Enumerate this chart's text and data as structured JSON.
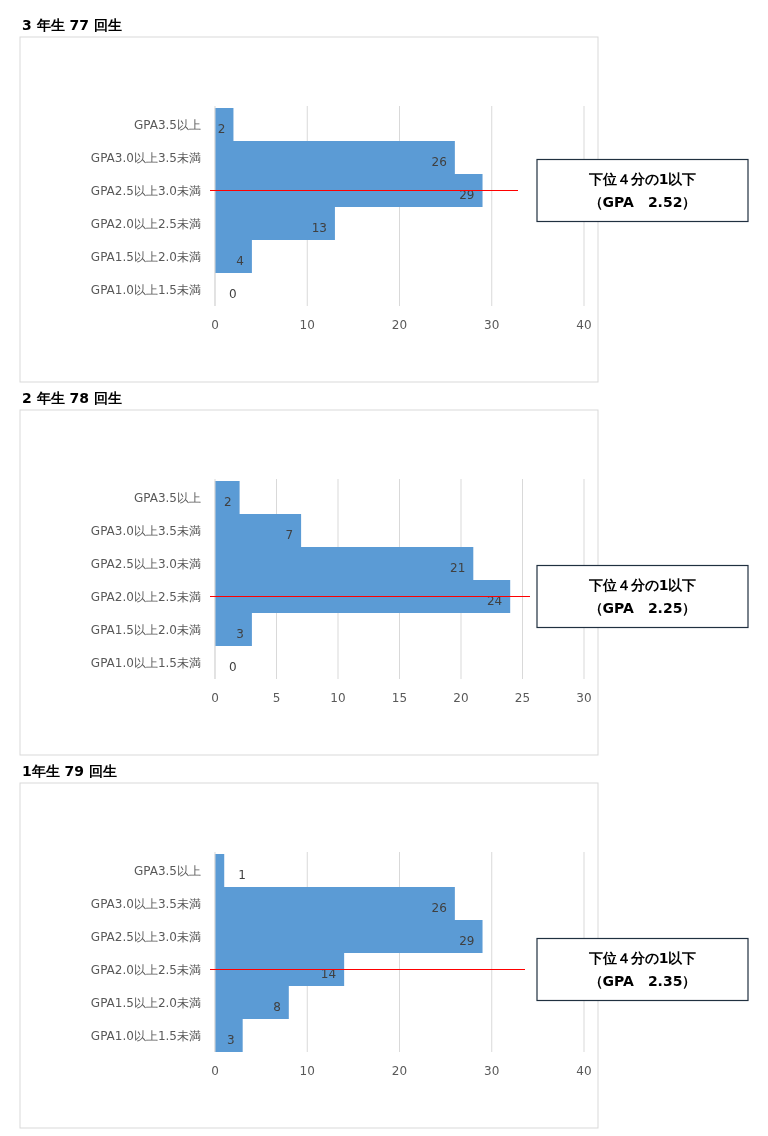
{
  "chart_data": [
    {
      "type": "bar",
      "orientation": "horizontal",
      "title": "3 年生  77 回生",
      "categories": [
        "GPA3.5以上",
        "GPA3.0以上3.5未満",
        "GPA2.5以上3.0未満",
        "GPA2.0以上2.5未満",
        "GPA1.5以上2.0未満",
        "GPA1.0以上1.5未満"
      ],
      "values": [
        2,
        26,
        29,
        13,
        4,
        0
      ],
      "color": "#5b9bd5",
      "xlim": [
        0,
        40
      ],
      "xticks": [
        0,
        10,
        20,
        30,
        40
      ],
      "grid": "x",
      "data_labels": true,
      "ref_lines": [
        {
          "axis": "y",
          "value": "GPA2.5以上3.0未満",
          "color": "#ff0000"
        }
      ],
      "annotations": [
        "下位４分の1以下",
        "（GPA　2.52）"
      ]
    },
    {
      "type": "bar",
      "orientation": "horizontal",
      "title": "2 年生  78 回生",
      "categories": [
        "GPA3.5以上",
        "GPA3.0以上3.5未満",
        "GPA2.5以上3.0未満",
        "GPA2.0以上2.5未満",
        "GPA1.5以上2.0未満",
        "GPA1.0以上1.5未満"
      ],
      "values": [
        2,
        7,
        21,
        24,
        3,
        0
      ],
      "color": "#5b9bd5",
      "xlim": [
        0,
        30
      ],
      "xticks": [
        0,
        5,
        10,
        15,
        20,
        25,
        30
      ],
      "grid": "x",
      "data_labels": true,
      "ref_lines": [
        {
          "axis": "y",
          "value": "GPA2.0以上2.5未満",
          "color": "#ff0000"
        }
      ],
      "annotations": [
        "下位４分の1以下",
        "（GPA　2.25）"
      ]
    },
    {
      "type": "bar",
      "orientation": "horizontal",
      "title": "1年生  79 回生",
      "categories": [
        "GPA3.5以上",
        "GPA3.0以上3.5未満",
        "GPA2.5以上3.0未満",
        "GPA2.0以上2.5未満",
        "GPA1.5以上2.0未満",
        "GPA1.0以上1.5未満"
      ],
      "values": [
        1,
        26,
        29,
        14,
        8,
        3
      ],
      "color": "#5b9bd5",
      "xlim": [
        0,
        40
      ],
      "xticks": [
        0,
        10,
        20,
        30,
        40
      ],
      "grid": "x",
      "data_labels": true,
      "ref_lines": [
        {
          "axis": "y",
          "value": "GPA2.0以上2.5未満",
          "color": "#ff0000"
        }
      ],
      "annotations": [
        "下位４分の1以下",
        "（GPA　2.35）"
      ]
    }
  ]
}
